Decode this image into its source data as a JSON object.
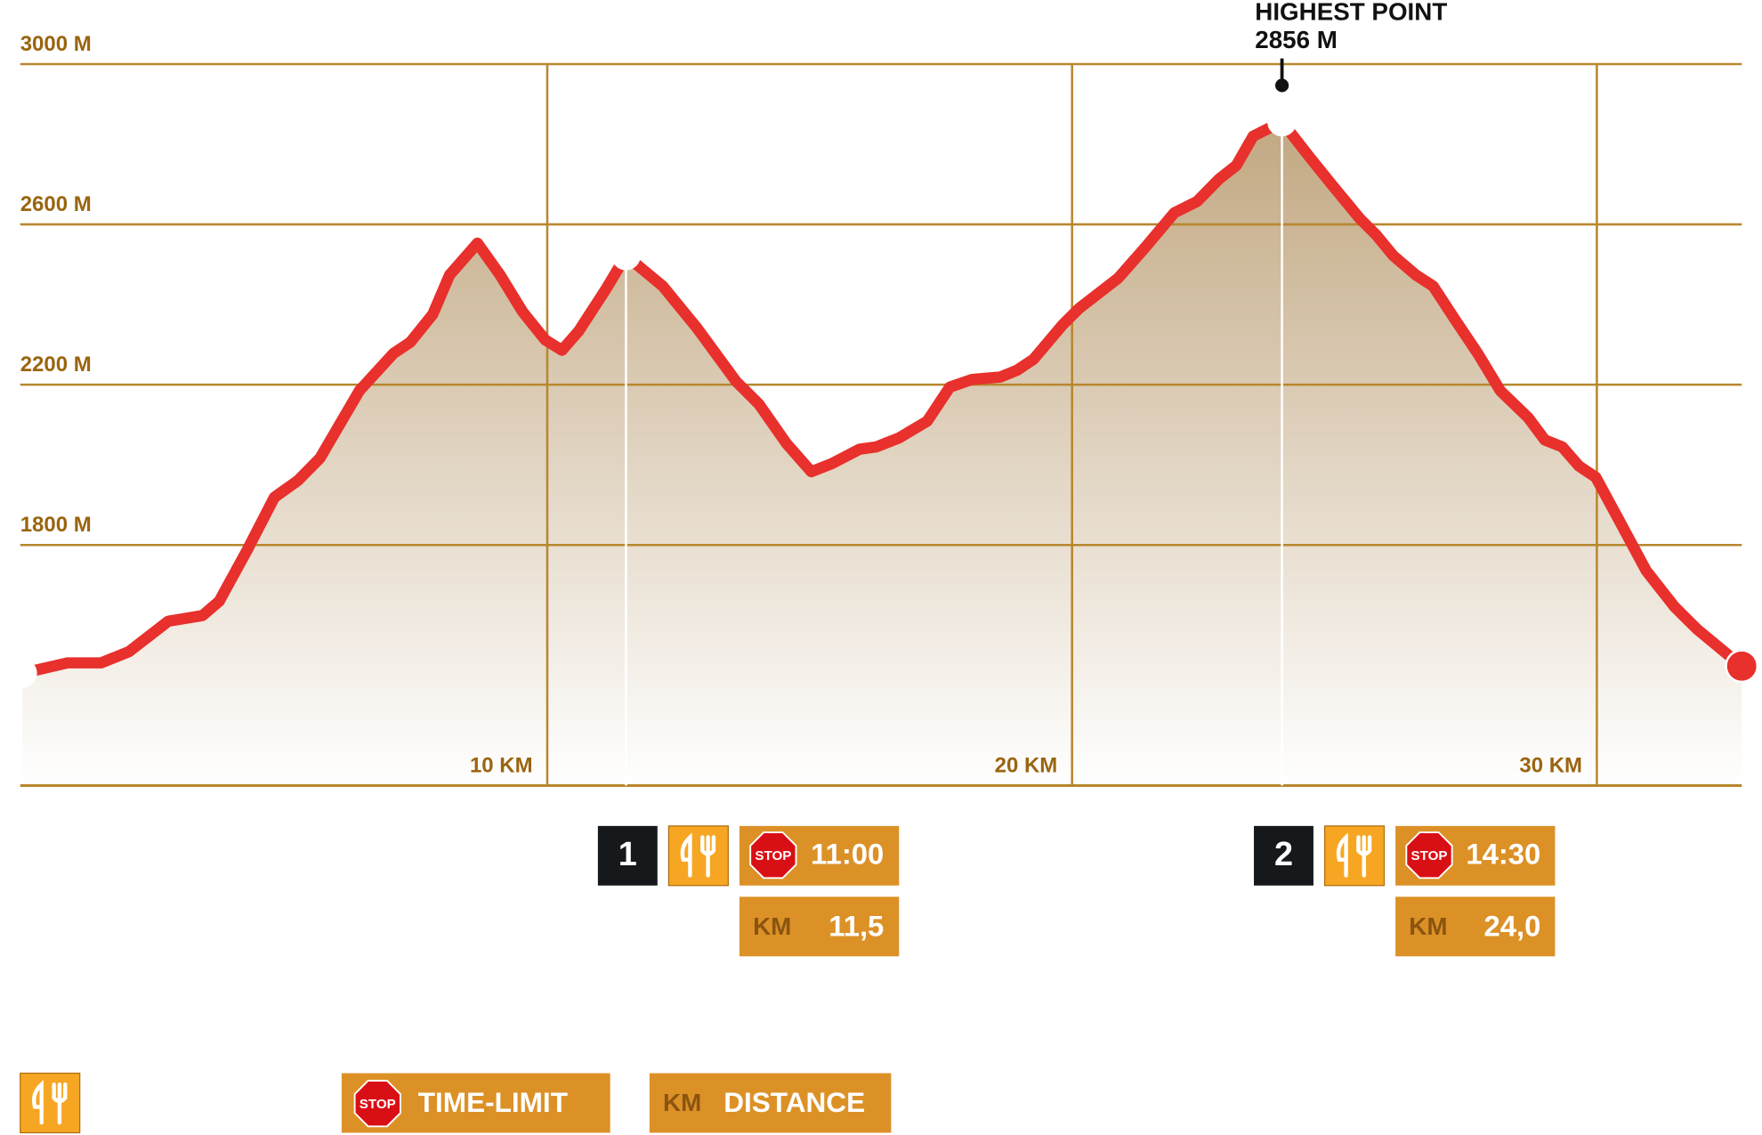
{
  "chart_data": {
    "type": "area",
    "x": [
      0,
      0.86,
      1.5,
      2.03,
      2.78,
      3.43,
      3.75,
      4.28,
      4.8,
      5.25,
      5.67,
      6.42,
      7.07,
      7.39,
      7.82,
      8.14,
      8.67,
      9.1,
      9.53,
      9.96,
      10.28,
      10.6,
      11.13,
      11.5,
      12.2,
      12.85,
      13.6,
      14.03,
      14.56,
      15.03,
      15.42,
      15.95,
      16.27,
      16.7,
      17.24,
      17.67,
      18.09,
      18.63,
      18.95,
      19.27,
      19.81,
      20.13,
      20.88,
      21.41,
      21.95,
      22.38,
      22.8,
      23.13,
      23.45,
      24.0,
      24.52,
      24.95,
      25.48,
      25.8,
      26.12,
      26.55,
      26.88,
      27.3,
      27.73,
      28.16,
      28.69,
      29.01,
      29.34,
      29.66,
      29.98,
      30.41,
      30.94,
      31.48,
      31.91,
      32.76
    ],
    "values": [
      1480,
      1506,
      1506,
      1534,
      1610,
      1624,
      1660,
      1787,
      1919,
      1961,
      2017,
      2185,
      2278,
      2306,
      2376,
      2474,
      2553,
      2474,
      2382,
      2312,
      2286,
      2334,
      2441,
      2522,
      2446,
      2342,
      2208,
      2152,
      2053,
      1983,
      2003,
      2039,
      2045,
      2067,
      2109,
      2194,
      2213,
      2219,
      2236,
      2264,
      2348,
      2390,
      2466,
      2545,
      2629,
      2657,
      2713,
      2747,
      2820,
      2856,
      2769,
      2699,
      2615,
      2573,
      2522,
      2474,
      2446,
      2362,
      2278,
      2185,
      2118,
      2062,
      2045,
      1997,
      1969,
      1865,
      1736,
      1646,
      1590,
      1498
    ],
    "color": "#e8302c",
    "area_color": "#c2a882",
    "xlim": [
      0,
      32.8
    ],
    "ylim": [
      1200,
      3000
    ],
    "xticks": [
      {
        "value": 10,
        "label": "10 KM"
      },
      {
        "value": 20,
        "label": "20 KM"
      },
      {
        "value": 30,
        "label": "30 KM"
      }
    ],
    "yticks": [
      {
        "value": 1800,
        "label": "1800 M"
      },
      {
        "value": 2200,
        "label": "2200 M"
      },
      {
        "value": 2600,
        "label": "2600 M"
      },
      {
        "value": 3000,
        "label": "3000 M"
      }
    ],
    "grid": true
  },
  "highest_point": {
    "title": "HIGHEST POINT",
    "elevation": {
      "value": 2856,
      "label": "2856 M"
    }
  },
  "stations": [
    {
      "number": "1",
      "time": "11:00",
      "km": {
        "value": 11.5,
        "label": "11,5"
      }
    },
    {
      "number": "2",
      "time": "14:30",
      "km": {
        "value": 24.0,
        "label": "24,0"
      }
    }
  ],
  "legend": {
    "stop_icon": "STOP",
    "km_icon": "KM",
    "time_limit": "TIME-LIMIT",
    "distance": "DISTANCE"
  }
}
